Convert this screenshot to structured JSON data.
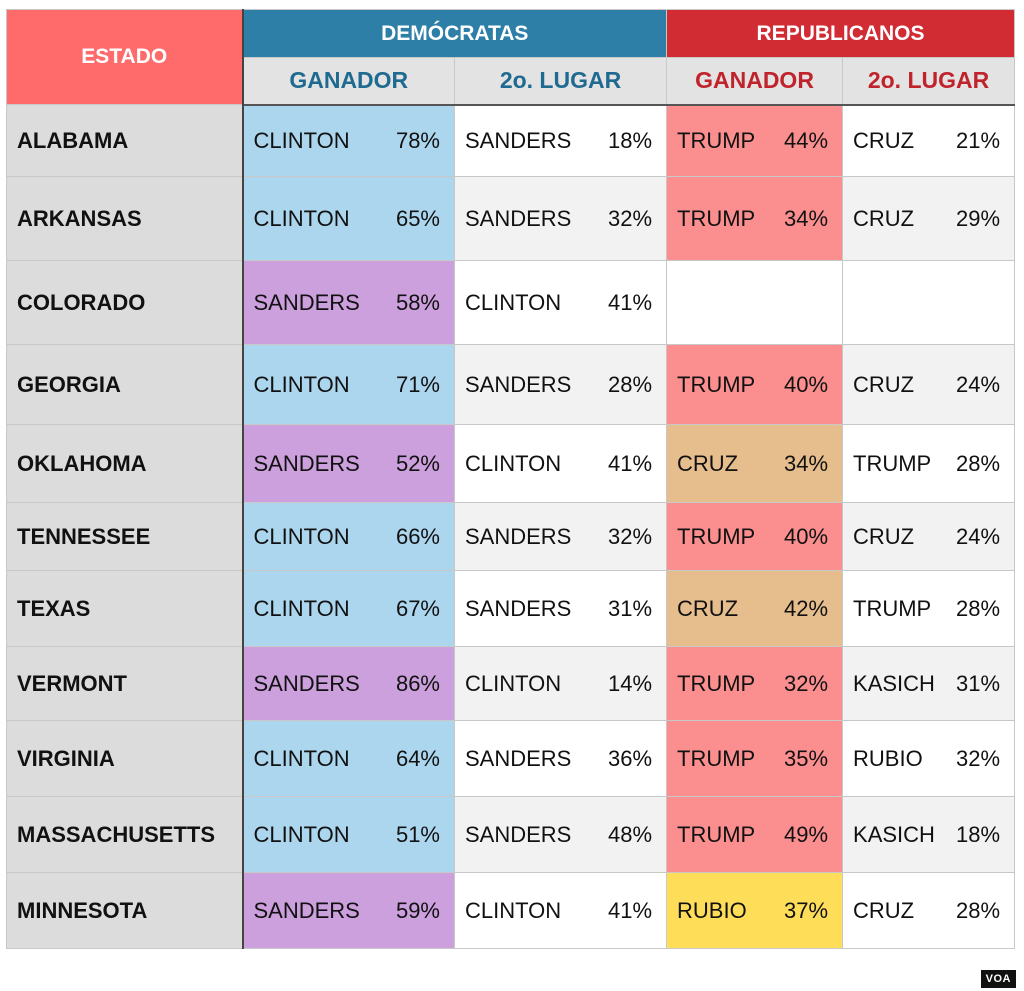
{
  "header": {
    "estado": "ESTADO",
    "democrats": "DEMÓCRATAS",
    "republicans": "REPUBLICANOS",
    "winner": "GANADOR",
    "second": "2o. LUGAR"
  },
  "colors": {
    "estado_header": "#ff6b6b",
    "democrats_header": "#2e7fa8",
    "republicans_header": "#d12b33",
    "clinton": "#acd6ee",
    "sanders": "#cc9fdd",
    "trump": "#fb8f8f",
    "cruz": "#e6bd8c",
    "rubio": "#fedd58"
  },
  "rows": [
    {
      "state": "ALABAMA",
      "dem_winner": {
        "name": "CLINTON",
        "pct": "78%"
      },
      "dem_second": {
        "name": "SANDERS",
        "pct": "18%"
      },
      "rep_winner": {
        "name": "TRUMP",
        "pct": "44%"
      },
      "rep_second": {
        "name": "CRUZ",
        "pct": "21%"
      }
    },
    {
      "state": "ARKANSAS",
      "dem_winner": {
        "name": "CLINTON",
        "pct": "65%"
      },
      "dem_second": {
        "name": "SANDERS",
        "pct": "32%"
      },
      "rep_winner": {
        "name": "TRUMP",
        "pct": "34%"
      },
      "rep_second": {
        "name": "CRUZ",
        "pct": "29%"
      }
    },
    {
      "state": "COLORADO",
      "dem_winner": {
        "name": "SANDERS",
        "pct": "58%"
      },
      "dem_second": {
        "name": "CLINTON",
        "pct": "41%"
      },
      "rep_winner": {
        "name": "",
        "pct": ""
      },
      "rep_second": {
        "name": "",
        "pct": ""
      }
    },
    {
      "state": "GEORGIA",
      "dem_winner": {
        "name": "CLINTON",
        "pct": "71%"
      },
      "dem_second": {
        "name": "SANDERS",
        "pct": "28%"
      },
      "rep_winner": {
        "name": "TRUMP",
        "pct": "40%"
      },
      "rep_second": {
        "name": "CRUZ",
        "pct": "24%"
      }
    },
    {
      "state": "OKLAHOMA",
      "dem_winner": {
        "name": "SANDERS",
        "pct": "52%"
      },
      "dem_second": {
        "name": "CLINTON",
        "pct": "41%"
      },
      "rep_winner": {
        "name": "CRUZ",
        "pct": "34%"
      },
      "rep_second": {
        "name": "TRUMP",
        "pct": "28%"
      }
    },
    {
      "state": "TENNESSEE",
      "dem_winner": {
        "name": "CLINTON",
        "pct": "66%"
      },
      "dem_second": {
        "name": "SANDERS",
        "pct": "32%"
      },
      "rep_winner": {
        "name": "TRUMP",
        "pct": "40%"
      },
      "rep_second": {
        "name": "CRUZ",
        "pct": "24%"
      }
    },
    {
      "state": "TEXAS",
      "dem_winner": {
        "name": "CLINTON",
        "pct": "67%"
      },
      "dem_second": {
        "name": "SANDERS",
        "pct": "31%"
      },
      "rep_winner": {
        "name": "CRUZ",
        "pct": "42%"
      },
      "rep_second": {
        "name": "TRUMP",
        "pct": "28%"
      }
    },
    {
      "state": "VERMONT",
      "dem_winner": {
        "name": "SANDERS",
        "pct": "86%"
      },
      "dem_second": {
        "name": "CLINTON",
        "pct": "14%"
      },
      "rep_winner": {
        "name": "TRUMP",
        "pct": "32%"
      },
      "rep_second": {
        "name": "KASICH",
        "pct": "31%"
      }
    },
    {
      "state": "VIRGINIA",
      "dem_winner": {
        "name": "CLINTON",
        "pct": "64%"
      },
      "dem_second": {
        "name": "SANDERS",
        "pct": "36%"
      },
      "rep_winner": {
        "name": "TRUMP",
        "pct": "35%"
      },
      "rep_second": {
        "name": "RUBIO",
        "pct": "32%"
      }
    },
    {
      "state": "MASSACHUSETTS",
      "dem_winner": {
        "name": "CLINTON",
        "pct": "51%"
      },
      "dem_second": {
        "name": "SANDERS",
        "pct": "48%"
      },
      "rep_winner": {
        "name": "TRUMP",
        "pct": "49%"
      },
      "rep_second": {
        "name": "KASICH",
        "pct": "18%"
      }
    },
    {
      "state": "MINNESOTA",
      "dem_winner": {
        "name": "SANDERS",
        "pct": "59%"
      },
      "dem_second": {
        "name": "CLINTON",
        "pct": "41%"
      },
      "rep_winner": {
        "name": "RUBIO",
        "pct": "37%"
      },
      "rep_second": {
        "name": "CRUZ",
        "pct": "28%"
      }
    }
  ],
  "logo": "VOA"
}
